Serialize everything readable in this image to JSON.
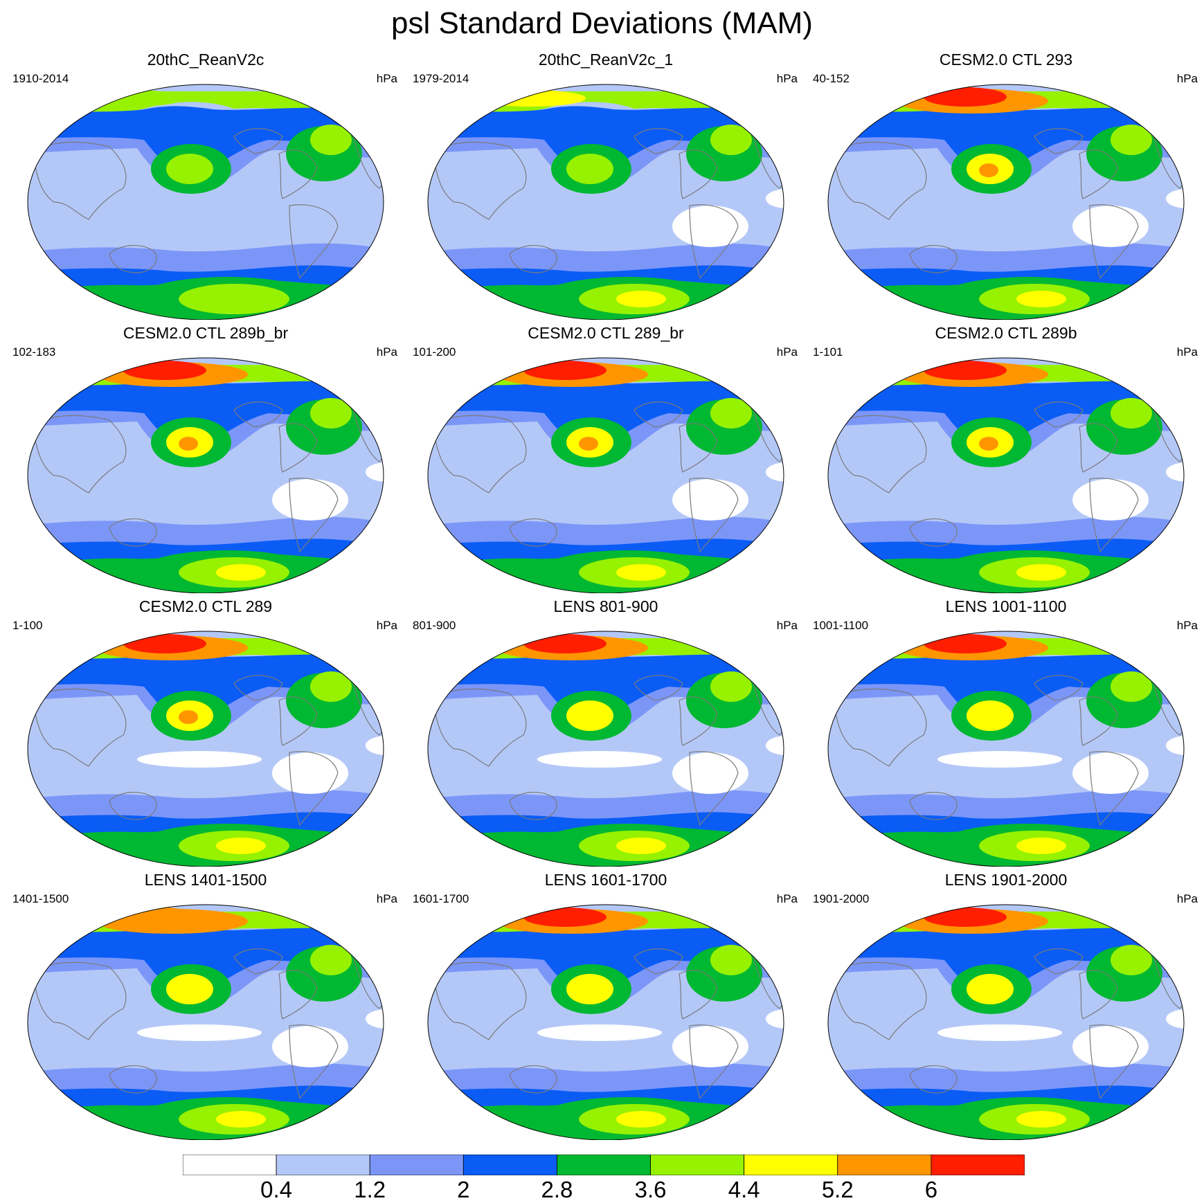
{
  "title": "psl Standard Deviations (MAM)",
  "panels": [
    {
      "title": "20thC_ReanV2c",
      "range": "1910-2014",
      "unit": "hPa"
    },
    {
      "title": "20thC_ReanV2c_1",
      "range": "1979-2014",
      "unit": "hPa"
    },
    {
      "title": "CESM2.0 CTL 293",
      "range": "40-152",
      "unit": "hPa"
    },
    {
      "title": "CESM2.0 CTL 289b_br",
      "range": "102-183",
      "unit": "hPa"
    },
    {
      "title": "CESM2.0 CTL 289_br",
      "range": "101-200",
      "unit": "hPa"
    },
    {
      "title": "CESM2.0 CTL 289b",
      "range": "1-101",
      "unit": "hPa"
    },
    {
      "title": "CESM2.0 CTL 289",
      "range": "1-100",
      "unit": "hPa"
    },
    {
      "title": "LENS 801-900",
      "range": "801-900",
      "unit": "hPa"
    },
    {
      "title": "LENS 1001-1100",
      "range": "1001-1100",
      "unit": "hPa"
    },
    {
      "title": "LENS 1401-1500",
      "range": "1401-1500",
      "unit": "hPa"
    },
    {
      "title": "LENS 1601-1700",
      "range": "1601-1700",
      "unit": "hPa"
    },
    {
      "title": "LENS 1901-2000",
      "range": "1901-2000",
      "unit": "hPa"
    }
  ],
  "colorbar": {
    "labels": [
      "0.4",
      "1.2",
      "2",
      "2.8",
      "3.6",
      "4.4",
      "5.2",
      "6"
    ],
    "colors": [
      "#ffffff",
      "#b4c8f8",
      "#7c96f8",
      "#0a5cf5",
      "#00b832",
      "#96f200",
      "#ffff00",
      "#ff9600",
      "#ff1e00"
    ]
  }
}
